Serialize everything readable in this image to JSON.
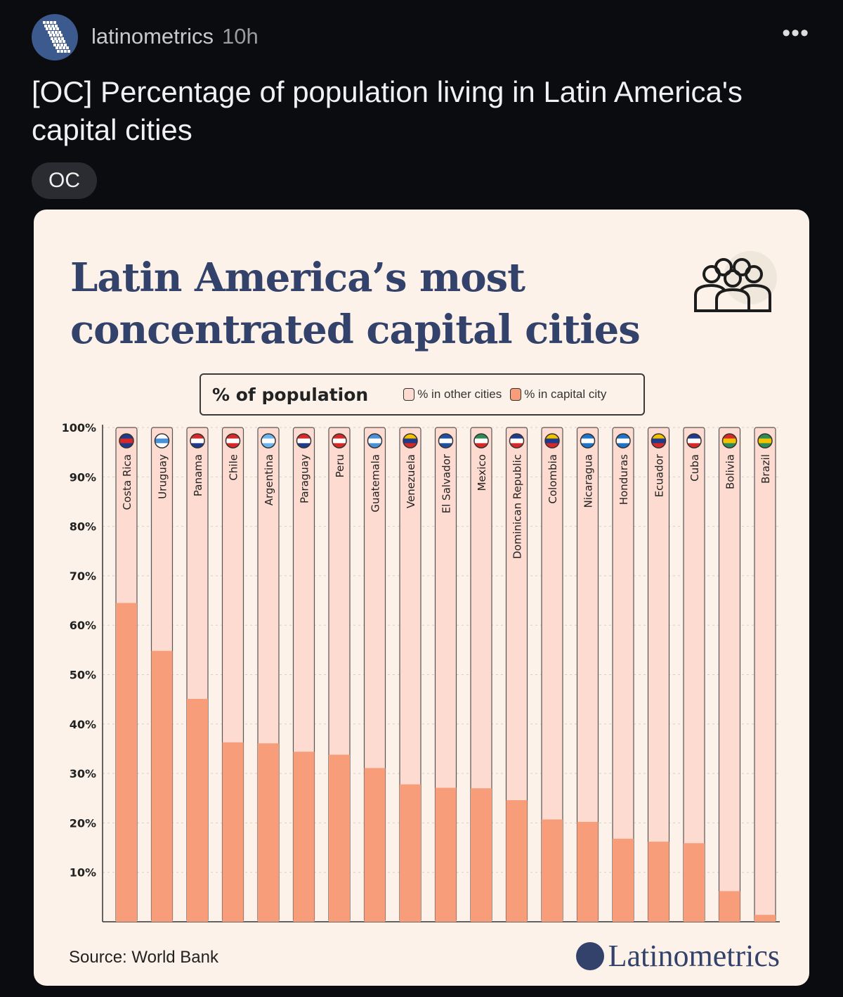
{
  "post": {
    "username": "latinometrics",
    "time": "10h",
    "title": "[OC] Percentage of population living in Latin America's capital cities",
    "flair": "OC",
    "more_icon": "ellipsis-icon"
  },
  "chart_data": {
    "type": "bar",
    "stacked": true,
    "title": "Latin America’s most concentrated capital cities",
    "legend_title": "% of population",
    "legend_placement": "top",
    "ylim": [
      0,
      100
    ],
    "yticks": [
      "10%",
      "20%",
      "30%",
      "40%",
      "50%",
      "60%",
      "70%",
      "80%",
      "90%",
      "100%"
    ],
    "grid": true,
    "categories": [
      "Costa Rica",
      "Uruguay",
      "Panama",
      "Chile",
      "Argentina",
      "Paraguay",
      "Peru",
      "Guatemala",
      "Venezuela",
      "El Salvador",
      "Mexico",
      "Dominican Republic",
      "Colombia",
      "Nicaragua",
      "Honduras",
      "Ecuador",
      "Cuba",
      "Bolivia",
      "Brazil"
    ],
    "series": [
      {
        "name": "% in capital city",
        "color": "#f79d7a",
        "values": [
          64.5,
          54.8,
          45.1,
          36.3,
          36.1,
          34.4,
          33.8,
          31.1,
          27.8,
          27.1,
          27.0,
          24.6,
          20.7,
          20.2,
          16.8,
          16.2,
          15.9,
          6.2,
          1.4
        ]
      },
      {
        "name": "% in other cities",
        "color": "#fddbd0",
        "values": [
          35.5,
          45.2,
          54.9,
          63.7,
          63.9,
          65.6,
          66.2,
          68.9,
          72.2,
          72.9,
          73.0,
          75.4,
          79.3,
          79.8,
          83.2,
          83.8,
          84.1,
          93.8,
          98.6
        ]
      }
    ],
    "flag_colors": [
      [
        "#1e3a8a",
        "#d62828",
        "#1e3a8a"
      ],
      [
        "#ffffff",
        "#4a90d9",
        "#ffffff"
      ],
      [
        "#d62828",
        "#ffffff",
        "#1e3a8a"
      ],
      [
        "#d62828",
        "#ffffff",
        "#d62828"
      ],
      [
        "#6cb4ee",
        "#ffffff",
        "#6cb4ee"
      ],
      [
        "#d62828",
        "#ffffff",
        "#1e3a8a"
      ],
      [
        "#d62828",
        "#ffffff",
        "#d62828"
      ],
      [
        "#4a90d9",
        "#ffffff",
        "#4a90d9"
      ],
      [
        "#f2c200",
        "#1e3a8a",
        "#d62828"
      ],
      [
        "#1e4fa0",
        "#ffffff",
        "#1e4fa0"
      ],
      [
        "#2e8b57",
        "#ffffff",
        "#d62828"
      ],
      [
        "#1e3a8a",
        "#ffffff",
        "#d62828"
      ],
      [
        "#f2c200",
        "#1e3a8a",
        "#d62828"
      ],
      [
        "#1e73c8",
        "#ffffff",
        "#1e73c8"
      ],
      [
        "#1e73c8",
        "#ffffff",
        "#1e73c8"
      ],
      [
        "#f2c200",
        "#1e3a8a",
        "#d62828"
      ],
      [
        "#1e3a8a",
        "#ffffff",
        "#d62828"
      ],
      [
        "#d62828",
        "#f2c200",
        "#2e8b57"
      ],
      [
        "#2e8b57",
        "#f2c200",
        "#2e8b57"
      ]
    ],
    "source": "Source: World Bank",
    "brand": "Latinometrics"
  }
}
